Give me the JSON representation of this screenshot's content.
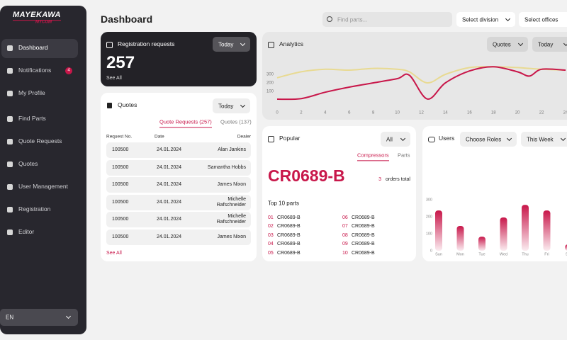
{
  "sidebar": {
    "logo": {
      "brand": "MAYEKAWA",
      "sub": "MYCOM"
    },
    "nav": [
      {
        "label": "Dashboard"
      },
      {
        "label": "Notifications",
        "badge": 4
      },
      {
        "label": "My Profile"
      },
      {
        "label": "Find Parts"
      },
      {
        "label": "Quote Requests"
      },
      {
        "label": "Quotes"
      },
      {
        "label": "User Management"
      },
      {
        "label": "Registration"
      },
      {
        "label": "Editor"
      }
    ],
    "language": "EN"
  },
  "header": {
    "title": "Dashboard",
    "search_placeholder": "Find parts...",
    "division": "Select division",
    "offices": "Select offices"
  },
  "registration": {
    "title": "Registration requests",
    "period": "Today",
    "count": 257,
    "link": "See All"
  },
  "analytics": {
    "title": "Analytics",
    "metric": "Quotes",
    "period": "Today",
    "chart": {
      "type": "line",
      "x": [
        0,
        2,
        4,
        6,
        8,
        10,
        11,
        12.5,
        14,
        16,
        18,
        20,
        21,
        22,
        24
      ],
      "series": [
        {
          "color": "#e8da92",
          "values": [
            260,
            330,
            360,
            350,
            370,
            360,
            330,
            200,
            300,
            380,
            390,
            380,
            370,
            360,
            350
          ]
        },
        {
          "color": "#c8174a",
          "values": [
            8,
            15,
            90,
            150,
            200,
            250,
            290,
            10,
            200,
            340,
            390,
            330,
            280,
            360,
            350
          ]
        }
      ],
      "xlim": [
        0,
        24
      ],
      "xticks": [
        0,
        2,
        4,
        6,
        8,
        10,
        12,
        14,
        16,
        18,
        20,
        22,
        24
      ],
      "ylim": [
        0,
        450
      ],
      "yticks": [
        100,
        200,
        300
      ]
    }
  },
  "quotes": {
    "title": "Quotes",
    "period": "Today",
    "tabs": [
      "Quote Requests (257)",
      "Quotes (137)"
    ],
    "columns": [
      "Request No.",
      "Date",
      "Dealer"
    ],
    "rows": [
      [
        "100500",
        "24.01.2024",
        "Alan Jankins"
      ],
      [
        "100500",
        "24.01.2024",
        "Samantha Hobbs"
      ],
      [
        "100500",
        "24.01.2024",
        "James Nixon"
      ],
      [
        "100500",
        "24.01.2024",
        "Michelle Rafschneider"
      ],
      [
        "100500",
        "24.01.2024",
        "Michelle Rafschneider"
      ],
      [
        "100500",
        "24.01.2024",
        "James Nixon"
      ]
    ],
    "link": "See All"
  },
  "popular": {
    "title": "Popular",
    "filter": "All",
    "tabs": [
      "Compressors",
      "Parts"
    ],
    "featured": "CR0689-B",
    "orders": 3,
    "orders_label": "orders total",
    "list_title": "Top 10 parts",
    "parts": [
      {
        "rank": "01",
        "name": "CR0689-B"
      },
      {
        "rank": "02",
        "name": "CR0689-B"
      },
      {
        "rank": "03",
        "name": "CR0689-B"
      },
      {
        "rank": "04",
        "name": "CR0689-B"
      },
      {
        "rank": "05",
        "name": "CR0689-B"
      },
      {
        "rank": "06",
        "name": "CR0689-B"
      },
      {
        "rank": "07",
        "name": "CR0689-B"
      },
      {
        "rank": "08",
        "name": "CR0689-B"
      },
      {
        "rank": "09",
        "name": "CR0689-B"
      },
      {
        "rank": "10",
        "name": "CR0689-B"
      }
    ]
  },
  "users": {
    "title": "Users",
    "roles": "Choose Roles",
    "period": "This Week",
    "chart": {
      "type": "bar",
      "categories": [
        "Sun",
        "Mon",
        "Tue",
        "Wed",
        "Thu",
        "Fri",
        "Sat"
      ],
      "values": [
        237,
        146,
        83,
        196,
        270,
        237,
        37
      ],
      "color": "#c8174a",
      "ylim": [
        0,
        300
      ],
      "yticks": [
        0,
        100,
        200,
        300
      ]
    }
  }
}
